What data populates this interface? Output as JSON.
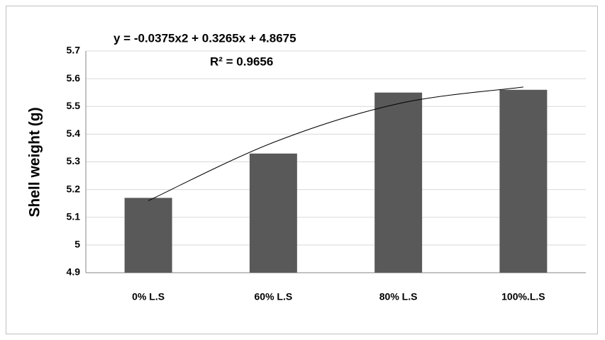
{
  "chart_data": {
    "type": "bar",
    "y_label": "Shell weight (g)",
    "annotations": [
      "y = -0.0375x2 + 0.3265x + 4.8675",
      "R² = 0.9656"
    ],
    "categories": [
      "0% L.S",
      "60% L.S",
      "80% L.S",
      "100%.L.S"
    ],
    "values": [
      5.17,
      5.33,
      5.55,
      5.56
    ],
    "color": "#595959",
    "trendline": {
      "values": [
        5.16,
        5.37,
        5.51,
        5.57
      ],
      "color": "#000000"
    },
    "ylim": [
      4.9,
      5.7
    ],
    "yticks": [
      4.9,
      5,
      5.1,
      5.2,
      5.3,
      5.4,
      5.5,
      5.6,
      5.7
    ],
    "grid": true
  }
}
